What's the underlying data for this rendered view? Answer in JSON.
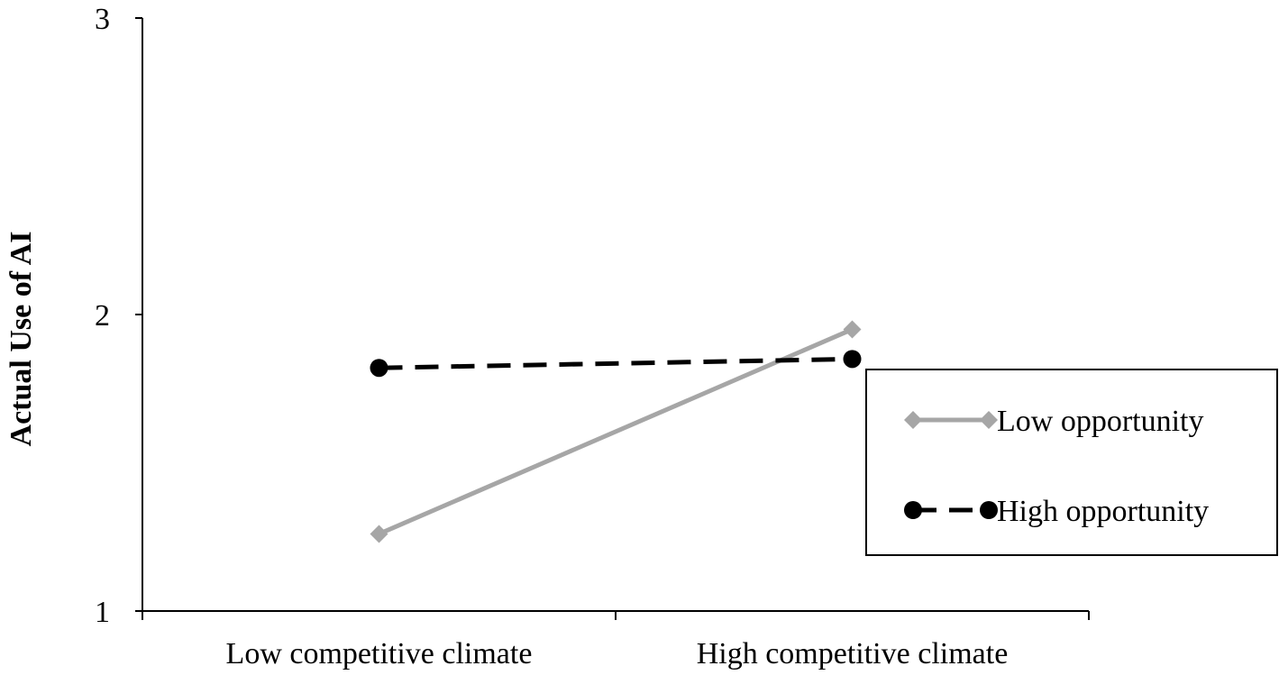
{
  "chart_data": {
    "type": "line",
    "title": "",
    "xlabel": "",
    "ylabel": "Actual Use of AI",
    "categories": [
      "Low competitive climate",
      "High competitive climate"
    ],
    "ylim": [
      1,
      3
    ],
    "yticks": [
      "1",
      "2",
      "3"
    ],
    "grid": false,
    "legend_position": "right",
    "series": [
      {
        "name": "Low opportunity",
        "values": [
          1.26,
          1.95
        ],
        "color": "#a6a6a6",
        "line_style": "solid",
        "marker": "diamond"
      },
      {
        "name": "High opportunity",
        "values": [
          1.82,
          1.85
        ],
        "color": "#000000",
        "line_style": "dashed",
        "marker": "circle"
      }
    ]
  }
}
